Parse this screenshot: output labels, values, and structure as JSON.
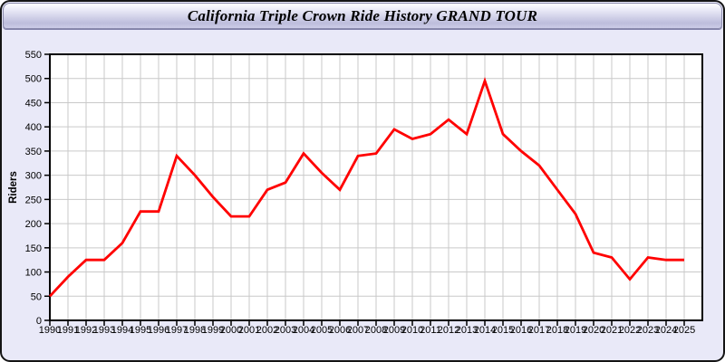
{
  "window": {
    "title": "California Triple Crown Ride History GRAND TOUR"
  },
  "theme": {
    "frame_border": "#141414",
    "panel_bg": "#e9e9f8",
    "titlebar_gradient_top": "#ffffff",
    "titlebar_gradient_bottom": "#bdbddc",
    "plot_bg": "#ffffff",
    "grid_color": "#c9c9c9",
    "axis_color": "#000000",
    "line_color": "#ff0000"
  },
  "chart_data": {
    "type": "line",
    "title": "California Triple Crown Ride History GRAND TOUR",
    "xlabel": "",
    "ylabel": "Riders",
    "x": [
      1990,
      1991,
      1992,
      1993,
      1994,
      1995,
      1996,
      1997,
      1998,
      1999,
      2000,
      2001,
      2002,
      2003,
      2004,
      2005,
      2006,
      2007,
      2008,
      2009,
      2010,
      2011,
      2012,
      2013,
      2014,
      2015,
      2016,
      2017,
      2018,
      2019,
      2020,
      2021,
      2022,
      2023,
      2024,
      2025
    ],
    "series": [
      {
        "name": "Riders",
        "color": "#ff0000",
        "values": [
          50,
          90,
          125,
          125,
          160,
          225,
          225,
          340,
          300,
          255,
          215,
          215,
          270,
          285,
          345,
          305,
          270,
          340,
          345,
          395,
          375,
          385,
          415,
          385,
          495,
          385,
          350,
          320,
          270,
          220,
          140,
          130,
          85,
          130,
          125,
          125
        ]
      }
    ],
    "ylim": [
      0,
      550
    ],
    "ytick_step": 50,
    "grid": true,
    "legend_position": "none"
  }
}
